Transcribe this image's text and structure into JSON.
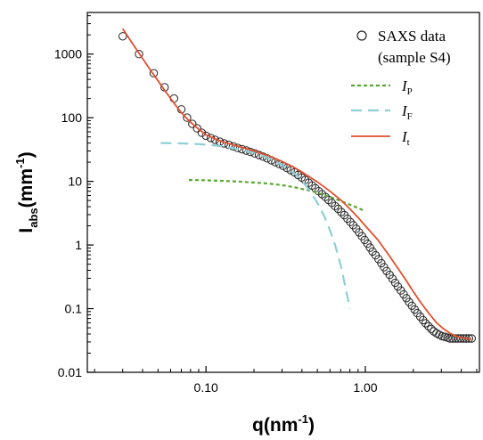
{
  "chart_data": {
    "type": "scatter",
    "x_scale": "log",
    "y_scale": "log",
    "xlim": [
      0.018,
      5.2
    ],
    "ylim": [
      0.01,
      4500
    ],
    "xticks": [
      0.1,
      1.0
    ],
    "xtick_labels": [
      "0.10",
      "1.00"
    ],
    "yticks": [
      0.01,
      0.1,
      1,
      10,
      100,
      1000
    ],
    "ytick_labels": [
      "0.01",
      "0.1",
      "1",
      "10",
      "100",
      "1000"
    ],
    "xlabel": {
      "main": "q(nm",
      "sup": "-1",
      "close": ")"
    },
    "ylabel": {
      "main": "I",
      "sub": "abs",
      "mid": "(mm",
      "sup": "-1",
      "close": ")"
    },
    "legend_position": "top-right",
    "grid": false,
    "series": [
      {
        "name": "SAXS data",
        "name_line2": "(sample S4)",
        "kind": "markers",
        "marker": "open-circle",
        "color": "#222222",
        "x": [
          0.03,
          0.038,
          0.047,
          0.055,
          0.063,
          0.07,
          0.076,
          0.082,
          0.088,
          0.094,
          0.1,
          0.107,
          0.114,
          0.122,
          0.13,
          0.139,
          0.148,
          0.158,
          0.168,
          0.179,
          0.19,
          0.202,
          0.215,
          0.228,
          0.242,
          0.257,
          0.272,
          0.288,
          0.305,
          0.322,
          0.34,
          0.359,
          0.378,
          0.398,
          0.419,
          0.441,
          0.463,
          0.486,
          0.51,
          0.535,
          0.561,
          0.588,
          0.616,
          0.645,
          0.675,
          0.706,
          0.738,
          0.771,
          0.805,
          0.84,
          0.876,
          0.913,
          0.951,
          0.99,
          1.03,
          1.07,
          1.11,
          1.16,
          1.21,
          1.26,
          1.31,
          1.36,
          1.42,
          1.48,
          1.54,
          1.6,
          1.67,
          1.74,
          1.81,
          1.88,
          1.96,
          2.04,
          2.12,
          2.21,
          2.3,
          2.39,
          2.49,
          2.59,
          2.69,
          2.8,
          2.91,
          3.03,
          3.15,
          3.28,
          3.41,
          3.54,
          3.68,
          3.83,
          3.98,
          4.14,
          4.3,
          4.47,
          4.65
        ],
        "y": [
          1900,
          1000,
          500,
          300,
          200,
          135,
          100,
          80,
          68,
          58,
          52,
          48,
          45,
          42,
          39.5,
          37.5,
          35.5,
          33.5,
          32,
          30.5,
          29,
          27.5,
          26,
          24.5,
          23,
          21.5,
          20,
          18.8,
          17.5,
          16.2,
          15.0,
          13.8,
          12.6,
          11.5,
          10.5,
          9.5,
          8.6,
          7.8,
          7.0,
          6.3,
          5.7,
          5.1,
          4.6,
          4.1,
          3.7,
          3.3,
          2.95,
          2.6,
          2.3,
          2.05,
          1.8,
          1.58,
          1.38,
          1.2,
          1.05,
          0.91,
          0.79,
          0.69,
          0.6,
          0.52,
          0.45,
          0.39,
          0.34,
          0.295,
          0.256,
          0.222,
          0.193,
          0.168,
          0.146,
          0.127,
          0.111,
          0.097,
          0.085,
          0.075,
          0.066,
          0.059,
          0.053,
          0.048,
          0.044,
          0.041,
          0.039,
          0.037,
          0.036,
          0.035,
          0.034,
          0.034,
          0.034,
          0.034,
          0.034,
          0.034,
          0.034,
          0.034,
          0.034
        ]
      },
      {
        "name": "I",
        "name_sub": "P",
        "kind": "line",
        "dash": "short",
        "color": "#5aa832",
        "x": [
          0.078,
          0.1,
          0.15,
          0.2,
          0.25,
          0.3,
          0.35,
          0.4,
          0.45,
          0.5,
          0.55,
          0.6,
          0.65,
          0.7,
          0.75,
          0.8,
          0.85,
          0.9,
          1.0
        ],
        "y": [
          10.5,
          10.4,
          10.0,
          9.6,
          9.2,
          8.7,
          8.2,
          7.6,
          7.1,
          6.6,
          6.1,
          5.7,
          5.3,
          4.9,
          4.6,
          4.3,
          4.05,
          3.8,
          3.4
        ]
      },
      {
        "name": "I",
        "name_sub": "F",
        "kind": "line",
        "dash": "long",
        "color": "#8ecfd6",
        "x": [
          0.052,
          0.07,
          0.09,
          0.11,
          0.13,
          0.15,
          0.18,
          0.21,
          0.25,
          0.29,
          0.33,
          0.37,
          0.41,
          0.45,
          0.5,
          0.55,
          0.6,
          0.65,
          0.7,
          0.75,
          0.8
        ],
        "y": [
          40,
          39.5,
          38.5,
          37,
          35,
          33,
          30,
          27,
          23,
          19,
          15.5,
          12.5,
          9.5,
          7.0,
          4.6,
          2.9,
          1.7,
          0.95,
          0.48,
          0.22,
          0.1
        ]
      },
      {
        "name": "I",
        "name_sub": "t",
        "kind": "line",
        "dash": "solid",
        "color": "#e0502e",
        "x": [
          0.03,
          0.035,
          0.04,
          0.045,
          0.05,
          0.055,
          0.06,
          0.065,
          0.07,
          0.08,
          0.09,
          0.1,
          0.12,
          0.14,
          0.17,
          0.2,
          0.25,
          0.3,
          0.35,
          0.4,
          0.5,
          0.6,
          0.7,
          0.8,
          0.9,
          1.0,
          1.2,
          1.4,
          1.6,
          1.8,
          2.0,
          2.2,
          2.5,
          2.8,
          3.1,
          3.4,
          3.7,
          4.0,
          4.3,
          4.65
        ],
        "y": [
          2500,
          1400,
          850,
          550,
          380,
          270,
          200,
          152,
          120,
          85,
          66,
          54,
          44,
          39,
          34,
          30,
          25,
          20.5,
          17,
          14,
          9.8,
          7.0,
          5.1,
          3.7,
          2.7,
          2.0,
          1.2,
          0.7,
          0.43,
          0.28,
          0.185,
          0.13,
          0.085,
          0.06,
          0.048,
          0.041,
          0.037,
          0.035,
          0.034,
          0.033
        ]
      }
    ]
  }
}
